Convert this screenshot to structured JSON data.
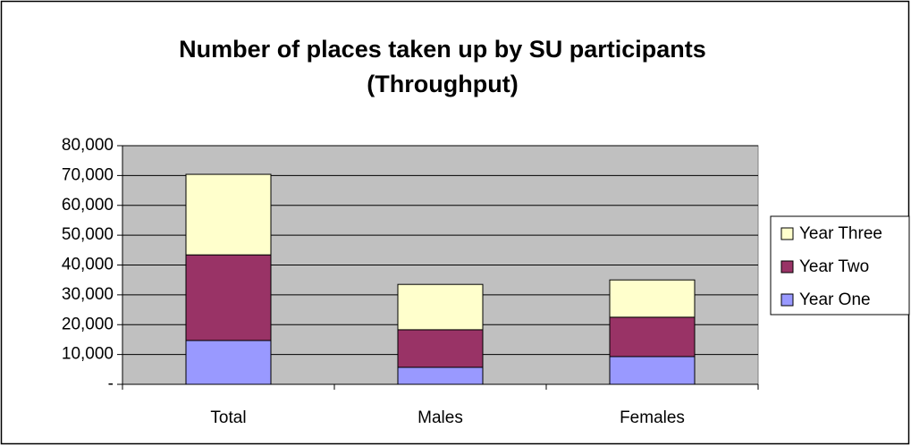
{
  "chart_data": {
    "type": "stacked_bar",
    "title": [
      "Number of places taken up by SU participants",
      "(Throughput)"
    ],
    "categories": [
      "Total",
      "Males",
      "Females"
    ],
    "series": [
      {
        "name": "Year One",
        "color": "#9999ff",
        "values": [
          14700,
          5700,
          9300
        ]
      },
      {
        "name": "Year Two",
        "color": "#993366",
        "values": [
          28700,
          12600,
          13200
        ]
      },
      {
        "name": "Year Three",
        "color": "#ffffcc",
        "values": [
          27000,
          15200,
          12500
        ]
      }
    ],
    "ylim": [
      0,
      80000
    ],
    "yticks": [
      {
        "value": 0,
        "label": "-"
      },
      {
        "value": 10000,
        "label": "10,000"
      },
      {
        "value": 20000,
        "label": "20,000"
      },
      {
        "value": 30000,
        "label": "30,000"
      },
      {
        "value": 40000,
        "label": "40,000"
      },
      {
        "value": 50000,
        "label": "50,000"
      },
      {
        "value": 60000,
        "label": "60,000"
      },
      {
        "value": 70000,
        "label": "70,000"
      },
      {
        "value": 80000,
        "label": "80,000"
      }
    ],
    "grid": true,
    "plot_background": "#c0c0c0",
    "legend": "right"
  }
}
